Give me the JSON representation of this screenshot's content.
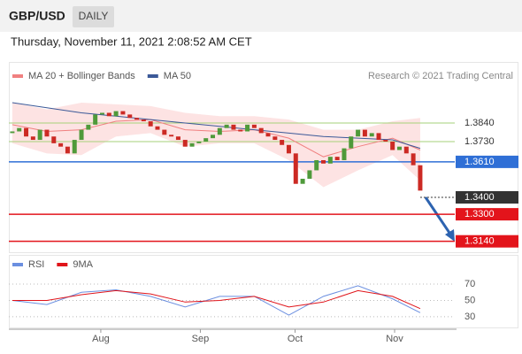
{
  "header": {
    "symbol": "GBP/USD",
    "period": "DAILY",
    "timestamp": "Thursday, November 11, 2021 2:08:52 AM CET"
  },
  "chart_data": [
    {
      "type": "candlestick",
      "note": "Research © 2021 Trading Central",
      "up_color": "#4f9a3a",
      "down_color": "#cc2a24",
      "xlim": [
        -0.5,
        64
      ],
      "ylim": [
        1.3086,
        1.407
      ],
      "x": [
        0,
        1,
        2,
        3,
        4,
        5,
        6,
        7,
        8,
        9,
        10,
        11,
        12,
        13,
        14,
        15,
        16,
        17,
        18,
        19,
        20,
        21,
        22,
        23,
        24,
        25,
        26,
        27,
        28,
        29,
        30,
        31,
        32,
        33,
        34,
        35,
        36,
        37,
        38,
        39,
        40,
        41,
        42,
        43,
        44,
        45,
        46,
        47,
        48,
        49,
        50,
        51,
        52,
        53,
        54,
        55,
        56,
        57,
        58,
        59
      ],
      "open": [
        1.378,
        1.379,
        1.381,
        1.376,
        1.374,
        1.38,
        1.376,
        1.372,
        1.37,
        1.366,
        1.374,
        1.38,
        1.383,
        1.389,
        1.39,
        1.388,
        1.391,
        1.389,
        1.387,
        1.386,
        1.385,
        1.382,
        1.38,
        1.377,
        1.376,
        1.374,
        1.37,
        1.372,
        1.373,
        1.375,
        1.377,
        1.381,
        1.383,
        1.38,
        1.379,
        1.383,
        1.381,
        1.378,
        1.376,
        1.374,
        1.371,
        1.366,
        1.348,
        1.351,
        1.356,
        1.362,
        1.36,
        1.364,
        1.362,
        1.369,
        1.376,
        1.38,
        1.376,
        1.378,
        1.374,
        1.373,
        1.368,
        1.37,
        1.366,
        1.359
      ],
      "close": [
        1.379,
        1.381,
        1.376,
        1.374,
        1.38,
        1.376,
        1.372,
        1.37,
        1.366,
        1.374,
        1.38,
        1.383,
        1.389,
        1.39,
        1.388,
        1.391,
        1.389,
        1.387,
        1.386,
        1.385,
        1.382,
        1.38,
        1.377,
        1.376,
        1.374,
        1.37,
        1.372,
        1.373,
        1.375,
        1.377,
        1.381,
        1.383,
        1.38,
        1.379,
        1.383,
        1.381,
        1.378,
        1.376,
        1.374,
        1.371,
        1.366,
        1.348,
        1.351,
        1.356,
        1.362,
        1.36,
        1.364,
        1.362,
        1.369,
        1.376,
        1.38,
        1.376,
        1.378,
        1.374,
        1.373,
        1.368,
        1.37,
        1.366,
        1.359,
        1.344
      ],
      "overlays": [
        {
          "name": "MA 20 + Bollinger Bands",
          "color": "#f08080",
          "band_color": "#fde3e3",
          "x": [
            0,
            5,
            10,
            15,
            20,
            25,
            30,
            35,
            40,
            45,
            50,
            55,
            59
          ],
          "values": [
            1.383,
            1.379,
            1.38,
            1.385,
            1.386,
            1.38,
            1.379,
            1.38,
            1.375,
            1.364,
            1.37,
            1.375,
            1.368
          ],
          "upper": [
            1.396,
            1.392,
            1.396,
            1.395,
            1.394,
            1.39,
            1.388,
            1.388,
            1.386,
            1.38,
            1.38,
            1.385,
            1.387
          ],
          "lower": [
            1.372,
            1.366,
            1.365,
            1.376,
            1.378,
            1.37,
            1.372,
            1.372,
            1.362,
            1.346,
            1.356,
            1.365,
            1.35
          ]
        },
        {
          "name": "MA 50",
          "color": "#3b5998",
          "x": [
            0,
            5,
            10,
            15,
            20,
            25,
            30,
            35,
            40,
            45,
            50,
            55,
            59
          ],
          "values": [
            1.396,
            1.393,
            1.39,
            1.388,
            1.386,
            1.384,
            1.382,
            1.38,
            1.378,
            1.376,
            1.375,
            1.374,
            1.369
          ]
        }
      ],
      "levels": [
        {
          "value": 1.384,
          "label": "1.3840",
          "color": "#a6d17a",
          "box": false,
          "dotted": false
        },
        {
          "value": 1.373,
          "label": "1.3730",
          "color": "#a6d17a",
          "box": false,
          "dotted": false
        },
        {
          "value": 1.361,
          "label": "1.3610",
          "color": "#2f6fd6",
          "box": true,
          "dotted": false
        },
        {
          "value": 1.34,
          "label": "1.3400",
          "color": "#333333",
          "box": true,
          "dotted": true
        },
        {
          "value": 1.33,
          "label": "1.3300",
          "color": "#e3141b",
          "box": true,
          "dotted": false
        },
        {
          "value": 1.314,
          "label": "1.3140",
          "color": "#e3141b",
          "box": true,
          "dotted": false
        }
      ]
    },
    {
      "type": "line",
      "xlim": [
        -0.5,
        64
      ],
      "ylim": [
        19,
        82
      ],
      "yticks": [
        70,
        50,
        30
      ],
      "xticks": [
        {
          "value": 12.8,
          "label": "Aug"
        },
        {
          "value": 27.2,
          "label": "Sep"
        },
        {
          "value": 40.9,
          "label": "Oct"
        },
        {
          "value": 55.3,
          "label": "Nov"
        }
      ],
      "series": [
        {
          "name": "RSI",
          "color": "#6b8fe0",
          "x": [
            0,
            5,
            10,
            15,
            20,
            25,
            30,
            35,
            40,
            45,
            50,
            55,
            59
          ],
          "values": [
            50,
            45,
            60,
            63,
            55,
            42,
            55,
            55,
            32,
            55,
            68,
            52,
            35
          ]
        },
        {
          "name": "9MA",
          "color": "#e0141a",
          "x": [
            0,
            5,
            10,
            15,
            20,
            25,
            30,
            35,
            40,
            45,
            50,
            55,
            59
          ],
          "values": [
            50,
            50,
            57,
            62,
            58,
            48,
            50,
            55,
            42,
            48,
            62,
            55,
            40
          ]
        }
      ]
    }
  ]
}
